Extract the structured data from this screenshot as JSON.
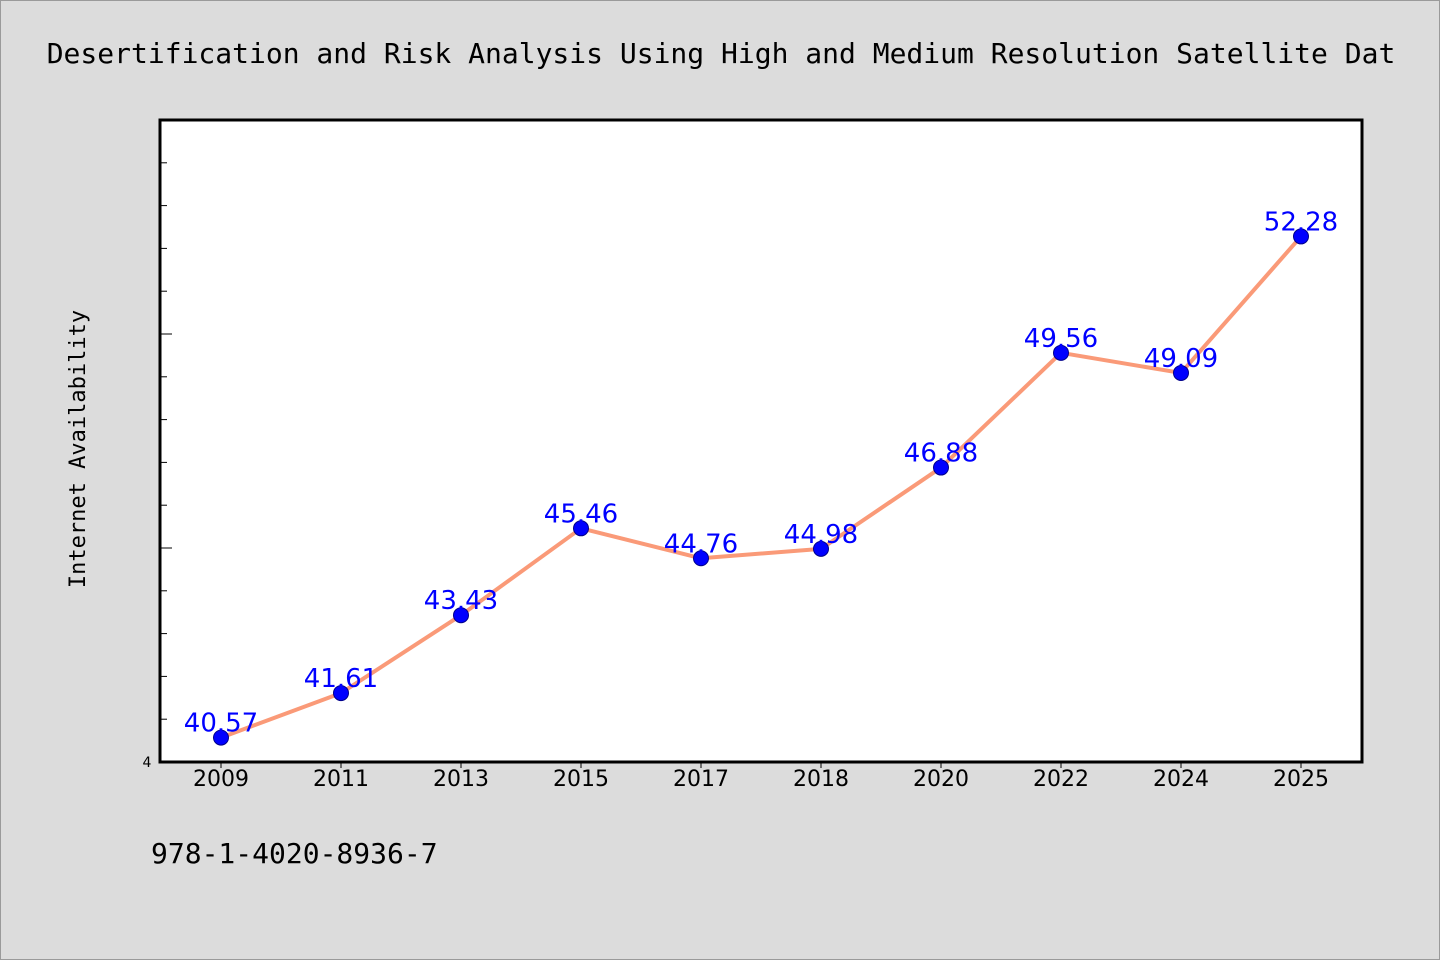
{
  "footer_text": "978-1-4020-8936-7",
  "chart_data": {
    "type": "line",
    "title": "Desertification and Risk Analysis Using High and Medium Resolution Satellite Dat",
    "xlabel": "",
    "ylabel": "Internet Availability",
    "categories": [
      "2009",
      "2011",
      "2013",
      "2015",
      "2017",
      "2018",
      "2020",
      "2022",
      "2024",
      "2025"
    ],
    "series": [
      {
        "values": [
          40.57,
          41.61,
          43.43,
          45.46,
          44.76,
          44.98,
          46.88,
          49.56,
          49.09,
          52.28
        ]
      }
    ],
    "data_labels": [
      "40.57",
      "41.61",
      "43.43",
      "45.46",
      "44.76",
      "44.98",
      "46.88",
      "49.56",
      "49.09",
      "52.28"
    ],
    "ylim": [
      40,
      55
    ],
    "y_tick_labels": [
      "4"
    ],
    "grid": false,
    "legend": "none",
    "colors": {
      "line": "#fa9a78",
      "marker": "#0000ff",
      "marker_edge": "#00008b",
      "data_label": "#0000ff",
      "plot_background": "#ffffff",
      "page_background": "#dcdcdc"
    }
  }
}
